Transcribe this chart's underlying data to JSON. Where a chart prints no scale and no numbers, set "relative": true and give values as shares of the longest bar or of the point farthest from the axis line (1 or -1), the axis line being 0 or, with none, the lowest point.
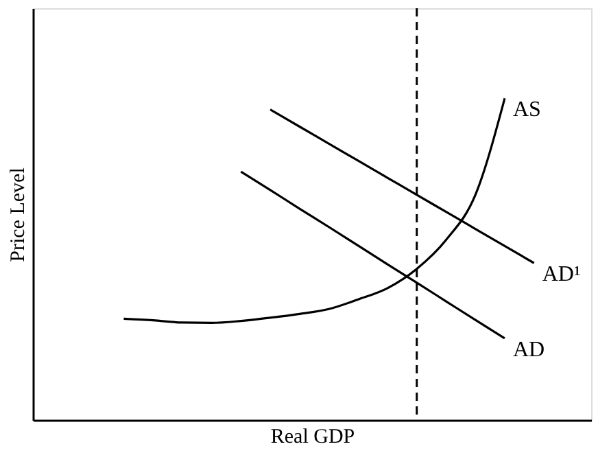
{
  "chart_data": {
    "type": "line",
    "xlabel": "Real GDP",
    "ylabel": "Price Level",
    "relative": true,
    "categories": [
      null,
      null,
      null,
      null,
      null,
      null,
      null,
      null,
      null,
      null,
      null,
      null,
      null,
      null,
      null,
      null
    ],
    "series": [
      {
        "name": "AS",
        "color": "#000000",
        "values": [
          null,
          0.315,
          0.31,
          0.303,
          0.302,
          0.308,
          0.318,
          0.33,
          0.345,
          0.375,
          0.41,
          0.47,
          0.56,
          0.7,
          1.0,
          null
        ]
      },
      {
        "name": "AD¹",
        "color": "#000000",
        "values": [
          null,
          null,
          null,
          null,
          null,
          null,
          0.965,
          0.912,
          0.859,
          0.806,
          0.753,
          0.7,
          0.647,
          0.594,
          0.541,
          0.488
        ]
      },
      {
        "name": "AD",
        "color": "#000000",
        "values": [
          null,
          null,
          null,
          null,
          null,
          0.772,
          0.715,
          0.657,
          0.6,
          0.542,
          0.484,
          0.427,
          0.369,
          0.311,
          0.254,
          null
        ]
      }
    ]
  }
}
